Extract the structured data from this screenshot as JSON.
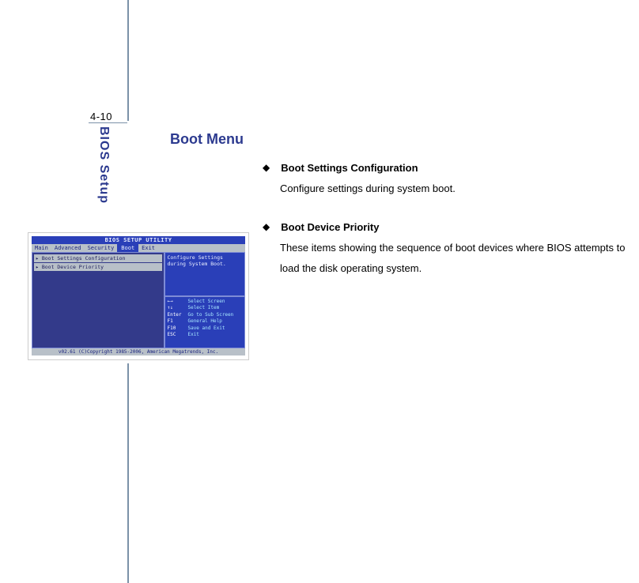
{
  "page_number": "4-10",
  "side_label": "BIOS Setup",
  "heading": "Boot Menu",
  "bullets": [
    {
      "title": "Boot Settings Configuration",
      "desc": "Configure settings during system boot."
    },
    {
      "title": "Boot Device Priority",
      "desc": "These items showing the sequence of boot devices where BIOS attempts to load the disk operating system."
    }
  ],
  "bios": {
    "title": "BIOS SETUP UTILITY",
    "tabs": [
      "Main",
      "Advanced",
      "Security",
      "Boot",
      "Exit"
    ],
    "active_tab": "Boot",
    "left_items": [
      "▸ Boot Settings Configuration",
      "▸ Boot Device Priority"
    ],
    "right_top": "Configure Settings\nduring System Boot.",
    "keys": [
      {
        "k": "←→",
        "v": "Select Screen"
      },
      {
        "k": "↑↓",
        "v": "Select Item"
      },
      {
        "k": "Enter",
        "v": "Go to Sub Screen"
      },
      {
        "k": "F1",
        "v": "General Help"
      },
      {
        "k": "F10",
        "v": "Save and Exit"
      },
      {
        "k": "ESC",
        "v": "Exit"
      }
    ],
    "footer": "v02.61 (C)Copyright 1985-2006, American Megatrends, Inc."
  },
  "colors": {
    "accent": "#2c3a8f",
    "rule": "#7b91a8",
    "bios_blue": "#2a3fb8",
    "bios_grey": "#b8c0c8",
    "bios_cyan": "#a6e6ff"
  }
}
